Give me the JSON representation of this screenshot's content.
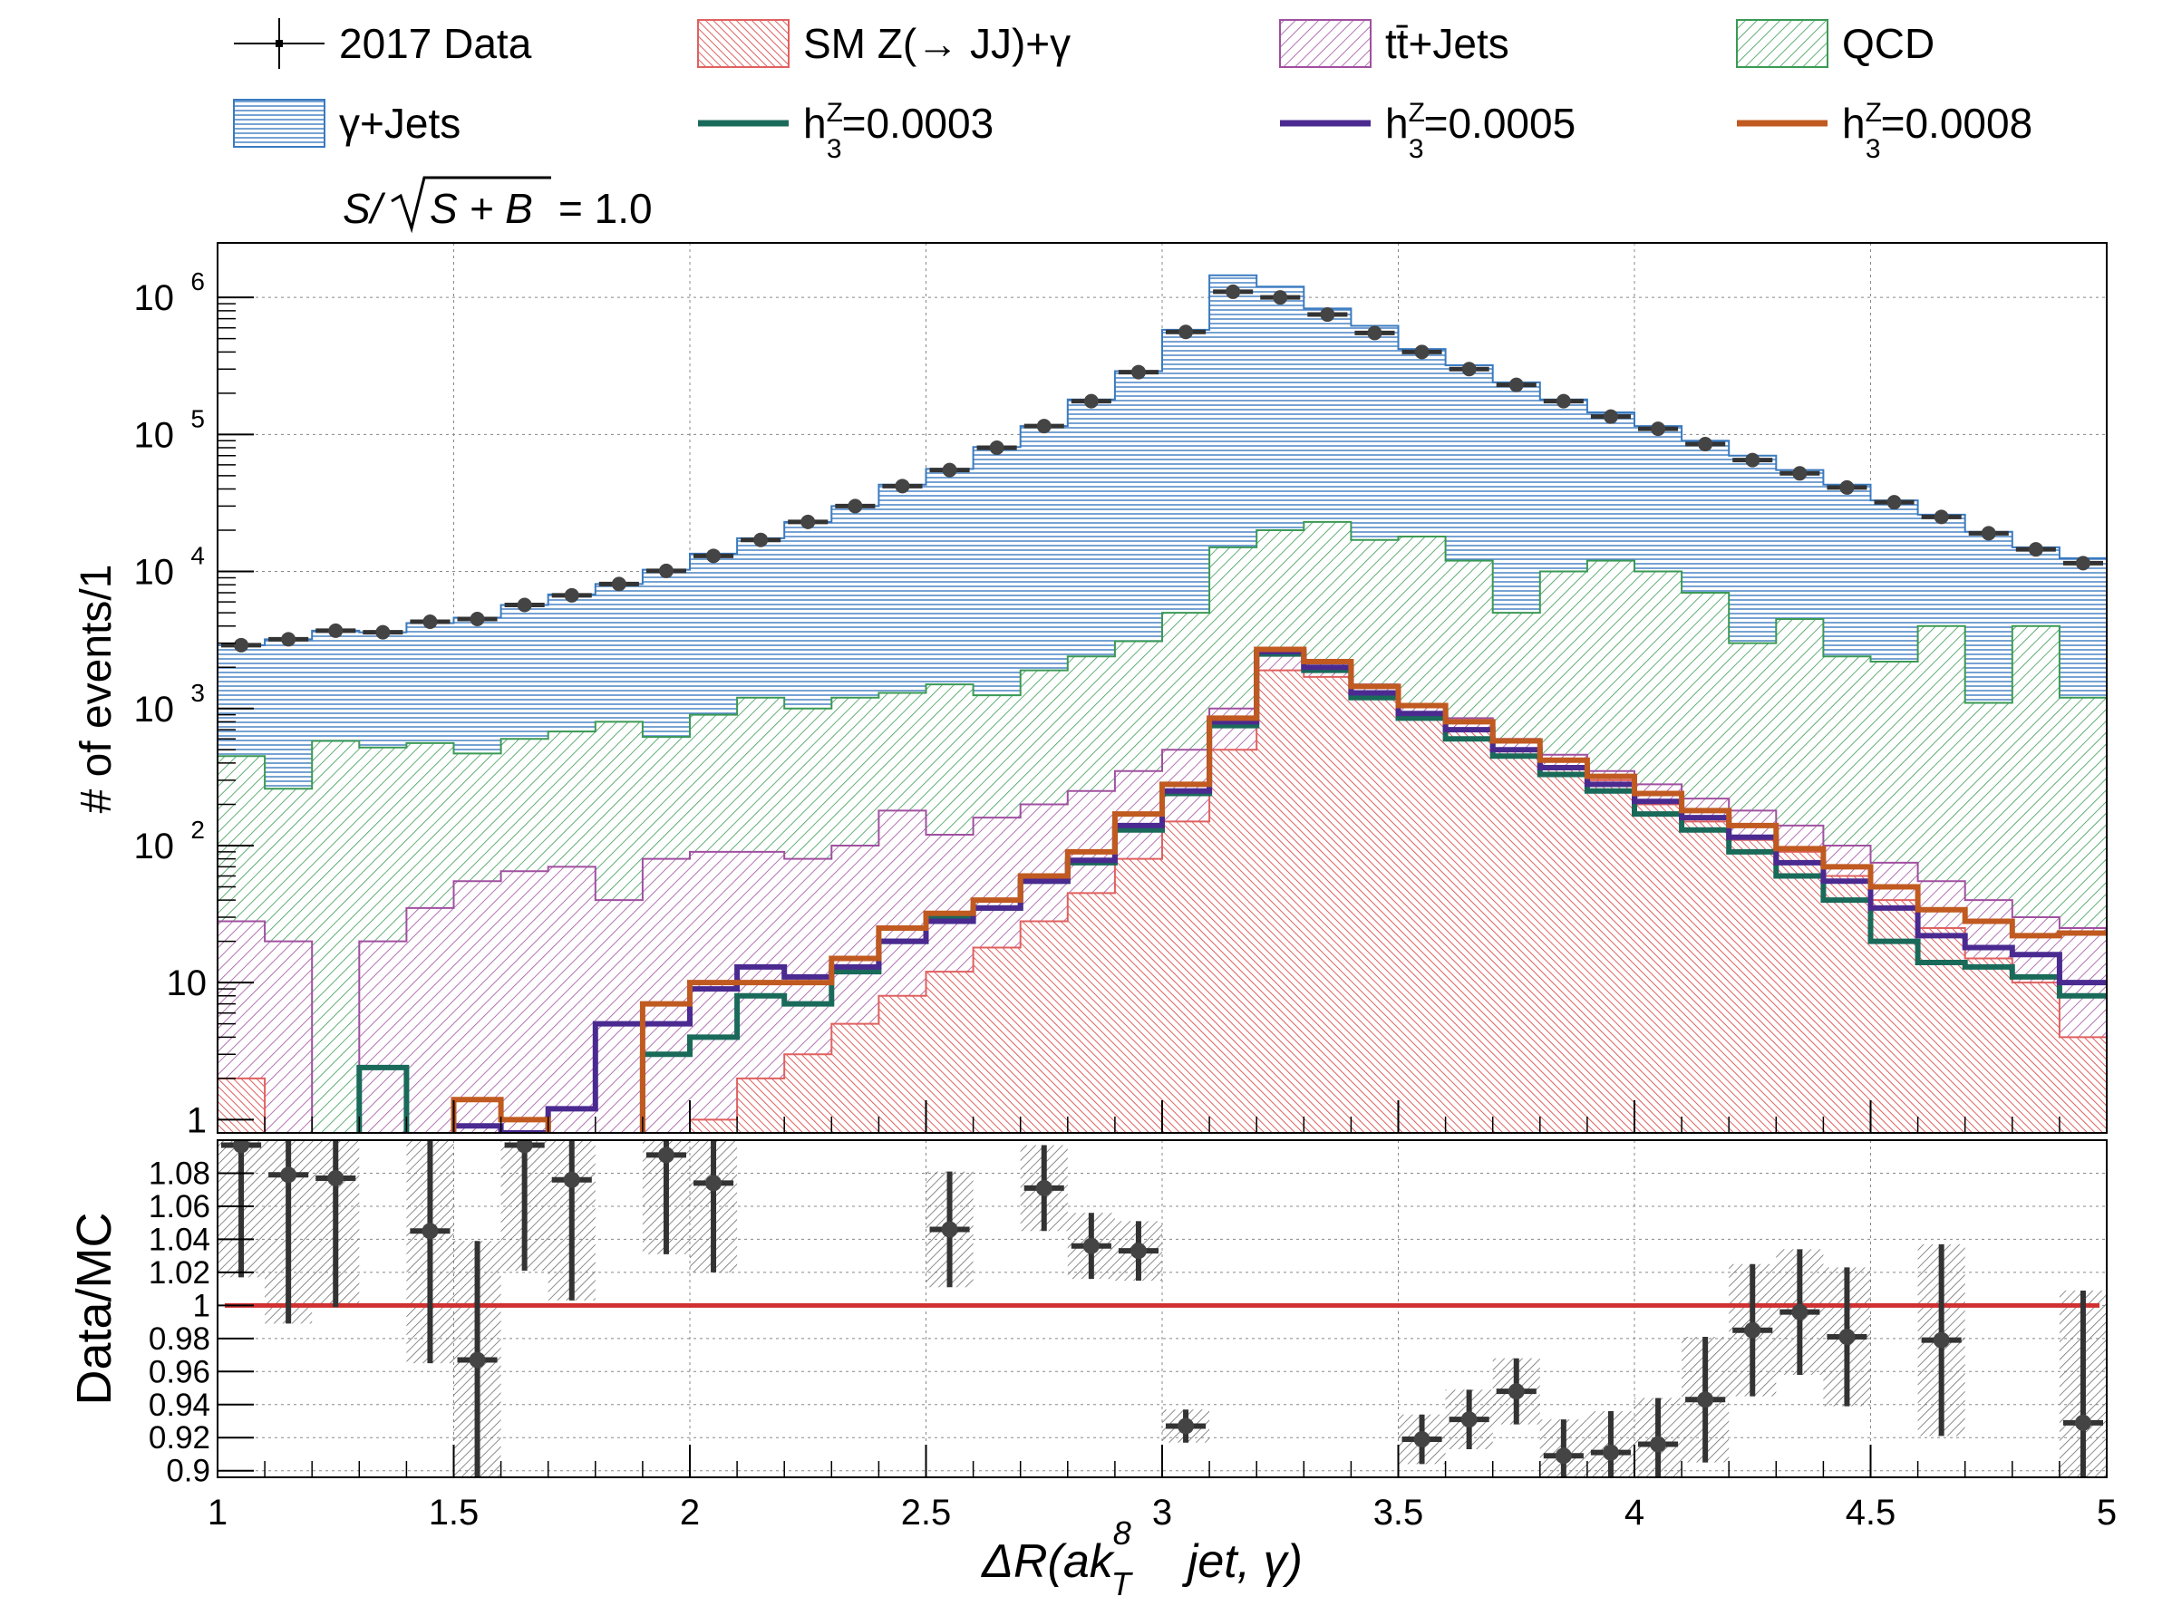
{
  "chart_data": [
    {
      "type": "histogram",
      "panel": "main",
      "ylabel": "# of events/1",
      "yscale": "log",
      "ylim": [
        0.8,
        2500000
      ],
      "grid": true,
      "y_tick_labels": [
        "1",
        "10",
        "10",
        "10",
        "10",
        "10",
        "10"
      ],
      "y_tick_exponents": [
        "",
        "",
        "2",
        "3",
        "4",
        "5",
        "6"
      ],
      "bin_edges": [
        1.0,
        1.1,
        1.2,
        1.3,
        1.4,
        1.5,
        1.6,
        1.7,
        1.8,
        1.9,
        2.0,
        2.1,
        2.2,
        2.3,
        2.4,
        2.5,
        2.6,
        2.7,
        2.8,
        2.9,
        3.0,
        3.1,
        3.2,
        3.3,
        3.4,
        3.5,
        3.6,
        3.7,
        3.8,
        3.9,
        4.0,
        4.1,
        4.2,
        4.3,
        4.4,
        4.5,
        4.6,
        4.7,
        4.8,
        4.9,
        5.0
      ],
      "legend_position": "top",
      "stack_note": "stacked backgrounds: QCD, SM Z(-> JJ)+γ, tt̄+Jets, γ+Jets (cumulative totals listed)",
      "stack": [
        {
          "name": "QCD",
          "color": "#3a9a55",
          "values": [
            450,
            260,
            580,
            520,
            560,
            470,
            600,
            680,
            800,
            620,
            900,
            1200,
            1000,
            1200,
            1300,
            1500,
            1250,
            1900,
            2400,
            3100,
            5000,
            15000,
            20000,
            23000,
            17000,
            18000,
            12000,
            5000,
            10000,
            12000,
            10000,
            7000,
            3000,
            4500,
            2400,
            2200,
            4000,
            1100,
            4000,
            1200
          ]
        },
        {
          "name": "SM Z(→ JJ)+γ",
          "color": "#e06060",
          "values": [
            2,
            0,
            0,
            0,
            0,
            0,
            0,
            0,
            0,
            0,
            1,
            2,
            3,
            5,
            8,
            12,
            18,
            28,
            45,
            80,
            150,
            500,
            1900,
            1700,
            1200,
            900,
            700,
            500,
            380,
            300,
            200,
            150,
            110,
            90,
            60,
            40,
            25,
            15,
            10,
            4
          ]
        },
        {
          "name": "tt̄+Jets",
          "color": "#a050a0",
          "values": [
            28,
            20,
            0,
            20,
            35,
            55,
            65,
            70,
            40,
            80,
            90,
            90,
            80,
            100,
            180,
            120,
            160,
            200,
            250,
            350,
            500,
            1000,
            2700,
            2200,
            1500,
            1050,
            850,
            600,
            460,
            350,
            280,
            220,
            180,
            140,
            100,
            75,
            55,
            40,
            30,
            25
          ]
        },
        {
          "name": "γ+Jets",
          "color": "#3a7ac0",
          "values": [
            2900,
            3200,
            3700,
            3600,
            4200,
            4600,
            5700,
            6800,
            8100,
            10300,
            13500,
            17500,
            23000,
            30000,
            43000,
            56000,
            81000,
            115000,
            180000,
            290000,
            580000,
            1450000,
            1200000,
            830000,
            620000,
            420000,
            320000,
            240000,
            180000,
            145000,
            115000,
            90000,
            70000,
            55000,
            43000,
            33000,
            26000,
            19500,
            15000,
            12500
          ]
        }
      ],
      "data": {
        "name": "2017 Data",
        "values": [
          2900,
          3200,
          3700,
          3600,
          4300,
          4500,
          5700,
          6700,
          8100,
          10100,
          13000,
          17000,
          23000,
          30000,
          42000,
          55000,
          80000,
          115000,
          175000,
          285000,
          560000,
          1100000,
          1000000,
          750000,
          550000,
          400000,
          300000,
          230000,
          175000,
          135000,
          110000,
          85000,
          65000,
          52000,
          41000,
          32000,
          25000,
          19000,
          14500,
          11500
        ]
      },
      "signals": [
        {
          "name": "h3Z=0.0003",
          "label_main": "h",
          "label_sup": "Z",
          "label_sub": "3",
          "label_value": "=0.0003",
          "color": "#1a6a5a",
          "values": [
            0,
            0,
            0,
            2.4,
            0,
            0,
            0,
            0,
            0,
            3,
            4,
            8,
            7,
            12,
            20,
            30,
            35,
            55,
            75,
            130,
            240,
            750,
            2500,
            1900,
            1200,
            850,
            600,
            450,
            330,
            250,
            170,
            130,
            90,
            60,
            40,
            20,
            14,
            13,
            11,
            8
          ]
        },
        {
          "name": "h3Z=0.0005",
          "label_main": "h",
          "label_sup": "Z",
          "label_sub": "3",
          "label_value": "=0.0005",
          "color": "#4a2a90",
          "values": [
            0,
            0,
            0,
            0,
            0,
            0.9,
            0.8,
            1.2,
            5,
            5,
            9,
            13,
            11,
            13,
            20,
            28,
            35,
            55,
            78,
            140,
            250,
            800,
            2600,
            2000,
            1300,
            920,
            700,
            500,
            370,
            280,
            210,
            160,
            115,
            75,
            55,
            35,
            22,
            18,
            16,
            10
          ]
        },
        {
          "name": "h3Z=0.0008",
          "label_main": "h",
          "label_sup": "Z",
          "label_sub": "3",
          "label_value": "=0.0008",
          "color": "#c05a20",
          "values": [
            0,
            0,
            0,
            0,
            0,
            1.4,
            1,
            0,
            0,
            7,
            10,
            10,
            10,
            15,
            25,
            32,
            40,
            60,
            90,
            170,
            280,
            850,
            2700,
            2200,
            1450,
            1050,
            800,
            580,
            420,
            320,
            240,
            180,
            140,
            95,
            70,
            50,
            34,
            28,
            22,
            23
          ]
        }
      ]
    },
    {
      "type": "ratio",
      "panel": "ratio",
      "ylabel": "Data/MC",
      "ylim": [
        0.9,
        1.1
      ],
      "y_tick_labels": [
        "0.9",
        "0.92",
        "0.94",
        "0.96",
        "0.98",
        "1",
        "1.02",
        "1.04",
        "1.06",
        "1.08"
      ],
      "x_tick_labels": [
        "1",
        "1.5",
        "2",
        "2.5",
        "3",
        "3.5",
        "4",
        "4.5",
        "5"
      ],
      "xlim": [
        1,
        5
      ],
      "reference_line": 1.0,
      "reference_color": "#d03030",
      "points": [
        {
          "x": 1.05,
          "y": 1.097,
          "err": 0.08
        },
        {
          "x": 1.15,
          "y": 1.079,
          "err": 0.09
        },
        {
          "x": 1.25,
          "y": 1.077,
          "err": 0.078
        },
        {
          "x": 1.45,
          "y": 1.045,
          "err": 0.08
        },
        {
          "x": 1.55,
          "y": 0.967,
          "err": 0.072
        },
        {
          "x": 1.65,
          "y": 1.097,
          "err": 0.076
        },
        {
          "x": 1.75,
          "y": 1.076,
          "err": 0.073
        },
        {
          "x": 1.95,
          "y": 1.091,
          "err": 0.06
        },
        {
          "x": 2.05,
          "y": 1.074,
          "err": 0.054
        },
        {
          "x": 2.55,
          "y": 1.046,
          "err": 0.035
        },
        {
          "x": 2.75,
          "y": 1.071,
          "err": 0.026
        },
        {
          "x": 2.85,
          "y": 1.036,
          "err": 0.02
        },
        {
          "x": 2.95,
          "y": 1.033,
          "err": 0.018
        },
        {
          "x": 3.05,
          "y": 0.927,
          "err": 0.01
        },
        {
          "x": 3.55,
          "y": 0.919,
          "err": 0.015
        },
        {
          "x": 3.65,
          "y": 0.931,
          "err": 0.018
        },
        {
          "x": 3.75,
          "y": 0.948,
          "err": 0.02
        },
        {
          "x": 3.85,
          "y": 0.909,
          "err": 0.022
        },
        {
          "x": 3.95,
          "y": 0.911,
          "err": 0.025
        },
        {
          "x": 4.05,
          "y": 0.916,
          "err": 0.028
        },
        {
          "x": 4.15,
          "y": 0.943,
          "err": 0.038
        },
        {
          "x": 4.25,
          "y": 0.985,
          "err": 0.04
        },
        {
          "x": 4.35,
          "y": 0.996,
          "err": 0.038
        },
        {
          "x": 4.45,
          "y": 0.981,
          "err": 0.042
        },
        {
          "x": 4.65,
          "y": 0.979,
          "err": 0.058
        },
        {
          "x": 4.95,
          "y": 0.929,
          "err": 0.08
        }
      ]
    }
  ],
  "legend": [
    {
      "label": "2017 Data",
      "kind": "data"
    },
    {
      "label": "SM Z(→ JJ)+γ",
      "kind": "hatch",
      "color": "#e06060"
    },
    {
      "label": "tt̄+Jets",
      "kind": "hatch",
      "color": "#a050a0"
    },
    {
      "label": "QCD",
      "kind": "hatch",
      "color": "#3a9a55"
    },
    {
      "label": "γ+Jets",
      "kind": "hatch",
      "color": "#3a7ac0"
    },
    {
      "label_main": "h",
      "label_sup": "Z",
      "label_sub": "3",
      "label_value": "=0.0003",
      "kind": "line",
      "color": "#1a6a5a"
    },
    {
      "label_main": "h",
      "label_sup": "Z",
      "label_sub": "3",
      "label_value": "=0.0005",
      "kind": "line",
      "color": "#4a2a90"
    },
    {
      "label_main": "h",
      "label_sup": "Z",
      "label_sub": "3",
      "label_value": "=0.0008",
      "kind": "line",
      "color": "#c05a20"
    }
  ],
  "significance": {
    "prefix": "S/",
    "radicand": "S + B",
    "value": "= 1.0"
  },
  "xtitle": {
    "main": "ΔR(ak",
    "sup": "8",
    "sub": "T",
    "rest": "jet, γ)"
  }
}
